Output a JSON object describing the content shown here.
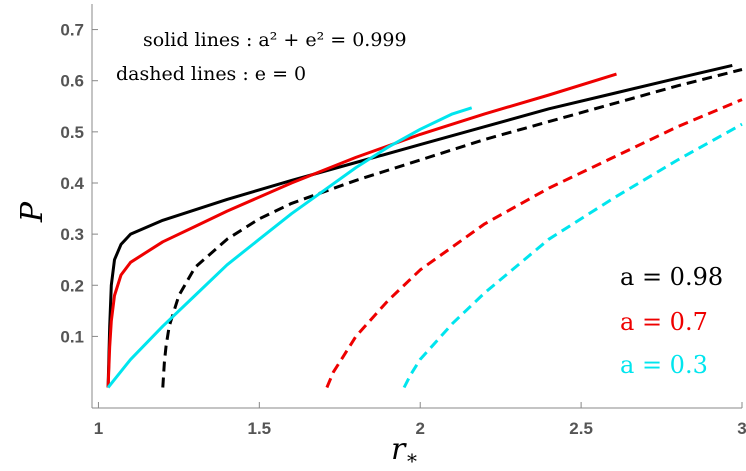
{
  "chart_data": {
    "type": "line",
    "title": "",
    "xlabel": "r",
    "xlabel_sub": "*",
    "ylabel": "P",
    "xlim": [
      0.98,
      3.0
    ],
    "ylim": [
      -0.04,
      0.75
    ],
    "xticks": [
      1,
      1.5,
      2,
      2.5,
      3
    ],
    "xtick_labels": [
      "1",
      "1.5",
      "2",
      "2.5",
      "3"
    ],
    "yticks": [
      0.1,
      0.2,
      0.3,
      0.4,
      0.5,
      0.6,
      0.7
    ],
    "ytick_labels": [
      "0.1",
      "0.2",
      "0.3",
      "0.4",
      "0.5",
      "0.6",
      "0.7"
    ],
    "grid": false,
    "annotations": [
      "solid lines : a² + e² = 0.999",
      "dashed lines : e = 0"
    ],
    "legend": [
      {
        "label": "a = 0.98",
        "color": "#000000"
      },
      {
        "label": "a = 0.7",
        "color": "#ee0000"
      },
      {
        "label": "a = 0.3",
        "color": "#00e5ee"
      }
    ],
    "legend_placement": "bottom-right",
    "series": [
      {
        "a": 0.98,
        "style": "solid",
        "color": "#000000",
        "x": [
          1.03,
          1.035,
          1.04,
          1.05,
          1.07,
          1.1,
          1.2,
          1.4,
          1.6,
          1.8,
          2.0,
          2.2,
          2.4,
          2.6,
          2.8,
          2.97
        ],
        "y": [
          0.0,
          0.12,
          0.2,
          0.25,
          0.28,
          0.3,
          0.327,
          0.368,
          0.405,
          0.44,
          0.475,
          0.51,
          0.545,
          0.575,
          0.605,
          0.63
        ]
      },
      {
        "a": 0.98,
        "style": "dashed",
        "color": "#000000",
        "x": [
          1.2,
          1.205,
          1.21,
          1.22,
          1.25,
          1.3,
          1.4,
          1.5,
          1.6,
          1.8,
          2.0,
          2.2,
          2.4,
          2.6,
          2.8,
          3.0
        ],
        "y": [
          0.0,
          0.05,
          0.08,
          0.12,
          0.18,
          0.235,
          0.29,
          0.33,
          0.36,
          0.405,
          0.445,
          0.485,
          0.52,
          0.555,
          0.59,
          0.622
        ]
      },
      {
        "a": 0.7,
        "style": "solid",
        "color": "#ee0000",
        "x": [
          1.03,
          1.035,
          1.04,
          1.05,
          1.07,
          1.1,
          1.2,
          1.3,
          1.4,
          1.6,
          1.8,
          2.0,
          2.2,
          2.4,
          2.61
        ],
        "y": [
          0.0,
          0.08,
          0.13,
          0.18,
          0.22,
          0.245,
          0.285,
          0.315,
          0.345,
          0.4,
          0.45,
          0.495,
          0.535,
          0.572,
          0.613
        ]
      },
      {
        "a": 0.7,
        "style": "dashed",
        "color": "#ee0000",
        "x": [
          1.71,
          1.73,
          1.76,
          1.8,
          1.9,
          2.0,
          2.2,
          2.4,
          2.6,
          2.8,
          3.0
        ],
        "y": [
          0.0,
          0.03,
          0.06,
          0.1,
          0.17,
          0.23,
          0.32,
          0.39,
          0.45,
          0.51,
          0.563
        ]
      },
      {
        "a": 0.3,
        "style": "solid",
        "color": "#00e5ee",
        "x": [
          1.03,
          1.1,
          1.2,
          1.3,
          1.4,
          1.5,
          1.6,
          1.7,
          1.8,
          1.9,
          2.0,
          2.1,
          2.16
        ],
        "y": [
          0.0,
          0.055,
          0.12,
          0.18,
          0.24,
          0.29,
          0.34,
          0.385,
          0.43,
          0.47,
          0.505,
          0.535,
          0.547
        ]
      },
      {
        "a": 0.3,
        "style": "dashed",
        "color": "#00e5ee",
        "x": [
          1.95,
          1.97,
          2.0,
          2.05,
          2.1,
          2.2,
          2.4,
          2.6,
          2.8,
          3.0
        ],
        "y": [
          0.0,
          0.025,
          0.055,
          0.09,
          0.125,
          0.185,
          0.29,
          0.37,
          0.445,
          0.515
        ]
      }
    ]
  }
}
